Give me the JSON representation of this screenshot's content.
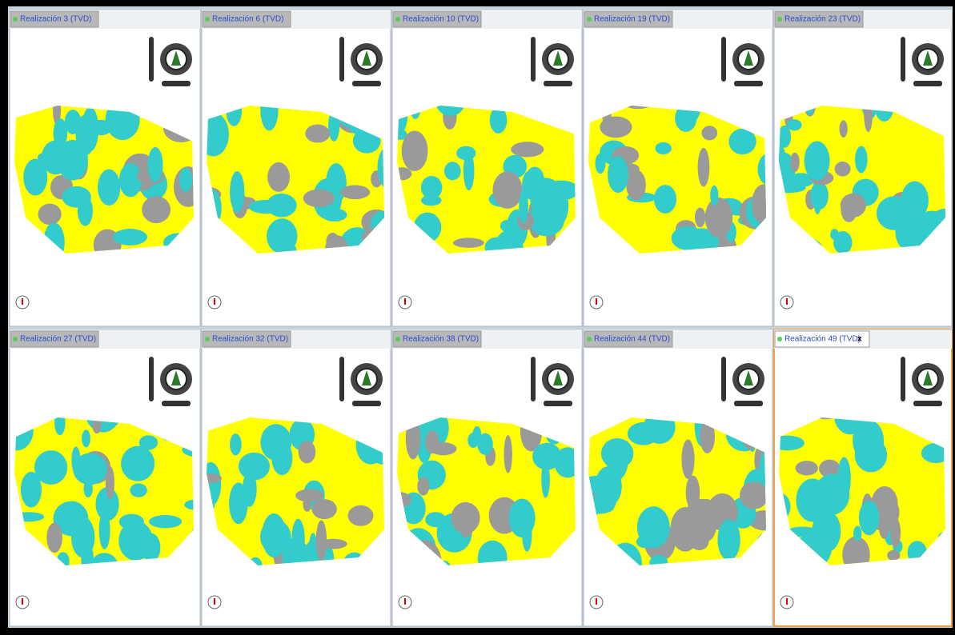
{
  "panels": [
    {
      "title": "Realización 3 (TVD)"
    },
    {
      "title": "Realización 6 (TVD)"
    },
    {
      "title": "Realización 10 (TVD)"
    },
    {
      "title": "Realización 19 (TVD)"
    },
    {
      "title": "Realización 23 (TVD)"
    },
    {
      "title": "Realización 27 (TVD)"
    },
    {
      "title": "Realización 32 (TVD)"
    },
    {
      "title": "Realización 38 (TVD)"
    },
    {
      "title": "Realización 44 (TVD)"
    },
    {
      "title": "Realización 49 (TVD)",
      "close": "x"
    }
  ]
}
